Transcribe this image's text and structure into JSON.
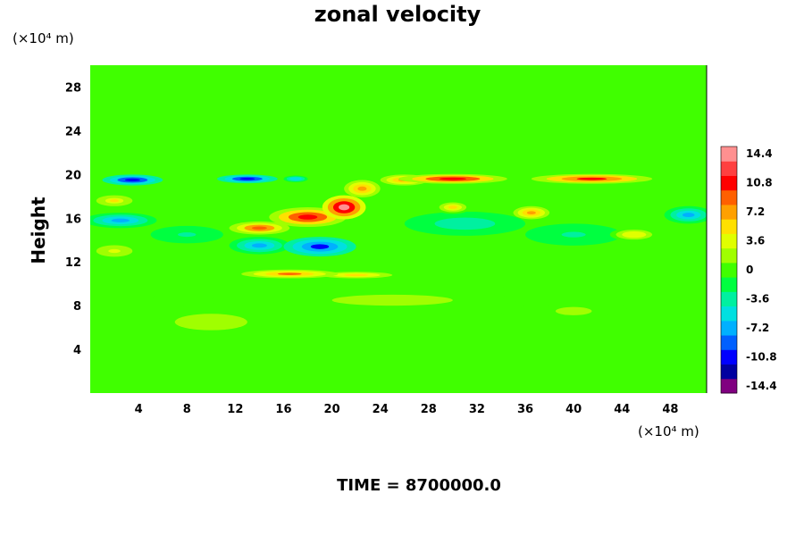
{
  "chart_data": {
    "type": "heatmap",
    "title": "zonal velocity",
    "ylabel": "Height",
    "xlabel": "",
    "x_unit": "(×10⁴ m)",
    "y_unit": "(×10⁴ m)",
    "xlim": [
      0,
      51
    ],
    "ylim": [
      0,
      30
    ],
    "x_ticks": [
      4,
      8,
      12,
      16,
      20,
      24,
      28,
      32,
      36,
      40,
      44,
      48
    ],
    "y_ticks": [
      4,
      8,
      12,
      16,
      20,
      24,
      28
    ],
    "colorbar": {
      "ticks": [
        14.4,
        10.8,
        7.2,
        3.6,
        0,
        -3.6,
        -7.2,
        -10.8,
        -14.4
      ],
      "min": -15.3,
      "max": 15.3,
      "colors": [
        "#800080",
        "#0000a0",
        "#0000ff",
        "#0060ff",
        "#00b0ff",
        "#00e0e0",
        "#00f0a0",
        "#00ff40",
        "#40ff00",
        "#a0ff00",
        "#e0ff00",
        "#ffe000",
        "#ffa000",
        "#ff6000",
        "#ff0000",
        "#ff4040",
        "#ff9090"
      ]
    },
    "background_value": -0.5,
    "features": [
      {
        "x": 3.5,
        "y": 19.5,
        "rx": 2.5,
        "ry": 0.5,
        "value": -11.5
      },
      {
        "x": 13.0,
        "y": 19.6,
        "rx": 2.5,
        "ry": 0.4,
        "value": -11.0
      },
      {
        "x": 17.0,
        "y": 19.6,
        "rx": 1.0,
        "ry": 0.3,
        "value": -6.0
      },
      {
        "x": 30.0,
        "y": 19.6,
        "rx": 4.5,
        "ry": 0.45,
        "value": 11.5
      },
      {
        "x": 41.5,
        "y": 19.6,
        "rx": 5.0,
        "ry": 0.45,
        "value": 10.5
      },
      {
        "x": 26.0,
        "y": 19.5,
        "rx": 2.0,
        "ry": 0.5,
        "value": 8.0
      },
      {
        "x": 21.0,
        "y": 17.0,
        "rx": 1.8,
        "ry": 1.1,
        "value": 14.5
      },
      {
        "x": 18.0,
        "y": 16.1,
        "rx": 3.2,
        "ry": 0.9,
        "value": 11.0
      },
      {
        "x": 14.0,
        "y": 15.1,
        "rx": 2.5,
        "ry": 0.6,
        "value": 9.0
      },
      {
        "x": 22.5,
        "y": 18.7,
        "rx": 1.5,
        "ry": 0.8,
        "value": 6.5
      },
      {
        "x": 19.0,
        "y": 13.4,
        "rx": 3.0,
        "ry": 0.9,
        "value": -10.0
      },
      {
        "x": 14.0,
        "y": 13.5,
        "rx": 2.5,
        "ry": 0.8,
        "value": -6.5
      },
      {
        "x": 2.5,
        "y": 15.8,
        "rx": 3.0,
        "ry": 0.7,
        "value": -6.5
      },
      {
        "x": 49.5,
        "y": 16.3,
        "rx": 2.0,
        "ry": 0.8,
        "value": -7.0
      },
      {
        "x": 31.0,
        "y": 15.5,
        "rx": 5.0,
        "ry": 1.1,
        "value": -3.5
      },
      {
        "x": 40.0,
        "y": 14.5,
        "rx": 4.0,
        "ry": 1.0,
        "value": -3.0
      },
      {
        "x": 8.0,
        "y": 14.5,
        "rx": 3.0,
        "ry": 0.8,
        "value": -3.0
      },
      {
        "x": 2.0,
        "y": 13.0,
        "rx": 2.0,
        "ry": 0.7,
        "value": 3.0
      },
      {
        "x": 16.5,
        "y": 10.9,
        "rx": 4.0,
        "ry": 0.4,
        "value": 8.5
      },
      {
        "x": 22.0,
        "y": 10.8,
        "rx": 4.0,
        "ry": 0.4,
        "value": 4.5
      },
      {
        "x": 2.0,
        "y": 17.6,
        "rx": 1.5,
        "ry": 0.5,
        "value": 5.5
      },
      {
        "x": 36.5,
        "y": 16.5,
        "rx": 1.5,
        "ry": 0.6,
        "value": 7.0
      },
      {
        "x": 30.0,
        "y": 17.0,
        "rx": 1.5,
        "ry": 0.6,
        "value": 5.0
      },
      {
        "x": 45.0,
        "y": 14.5,
        "rx": 2.0,
        "ry": 0.6,
        "value": 4.0
      },
      {
        "x": 25.0,
        "y": 8.5,
        "rx": 20.0,
        "ry": 2.0,
        "value": 1.0
      },
      {
        "x": 10.0,
        "y": 6.5,
        "rx": 6.0,
        "ry": 1.5,
        "value": 1.5
      },
      {
        "x": 40.0,
        "y": 7.5,
        "rx": 6.0,
        "ry": 1.5,
        "value": 1.2
      }
    ]
  },
  "time_label": "TIME = 8700000.0"
}
